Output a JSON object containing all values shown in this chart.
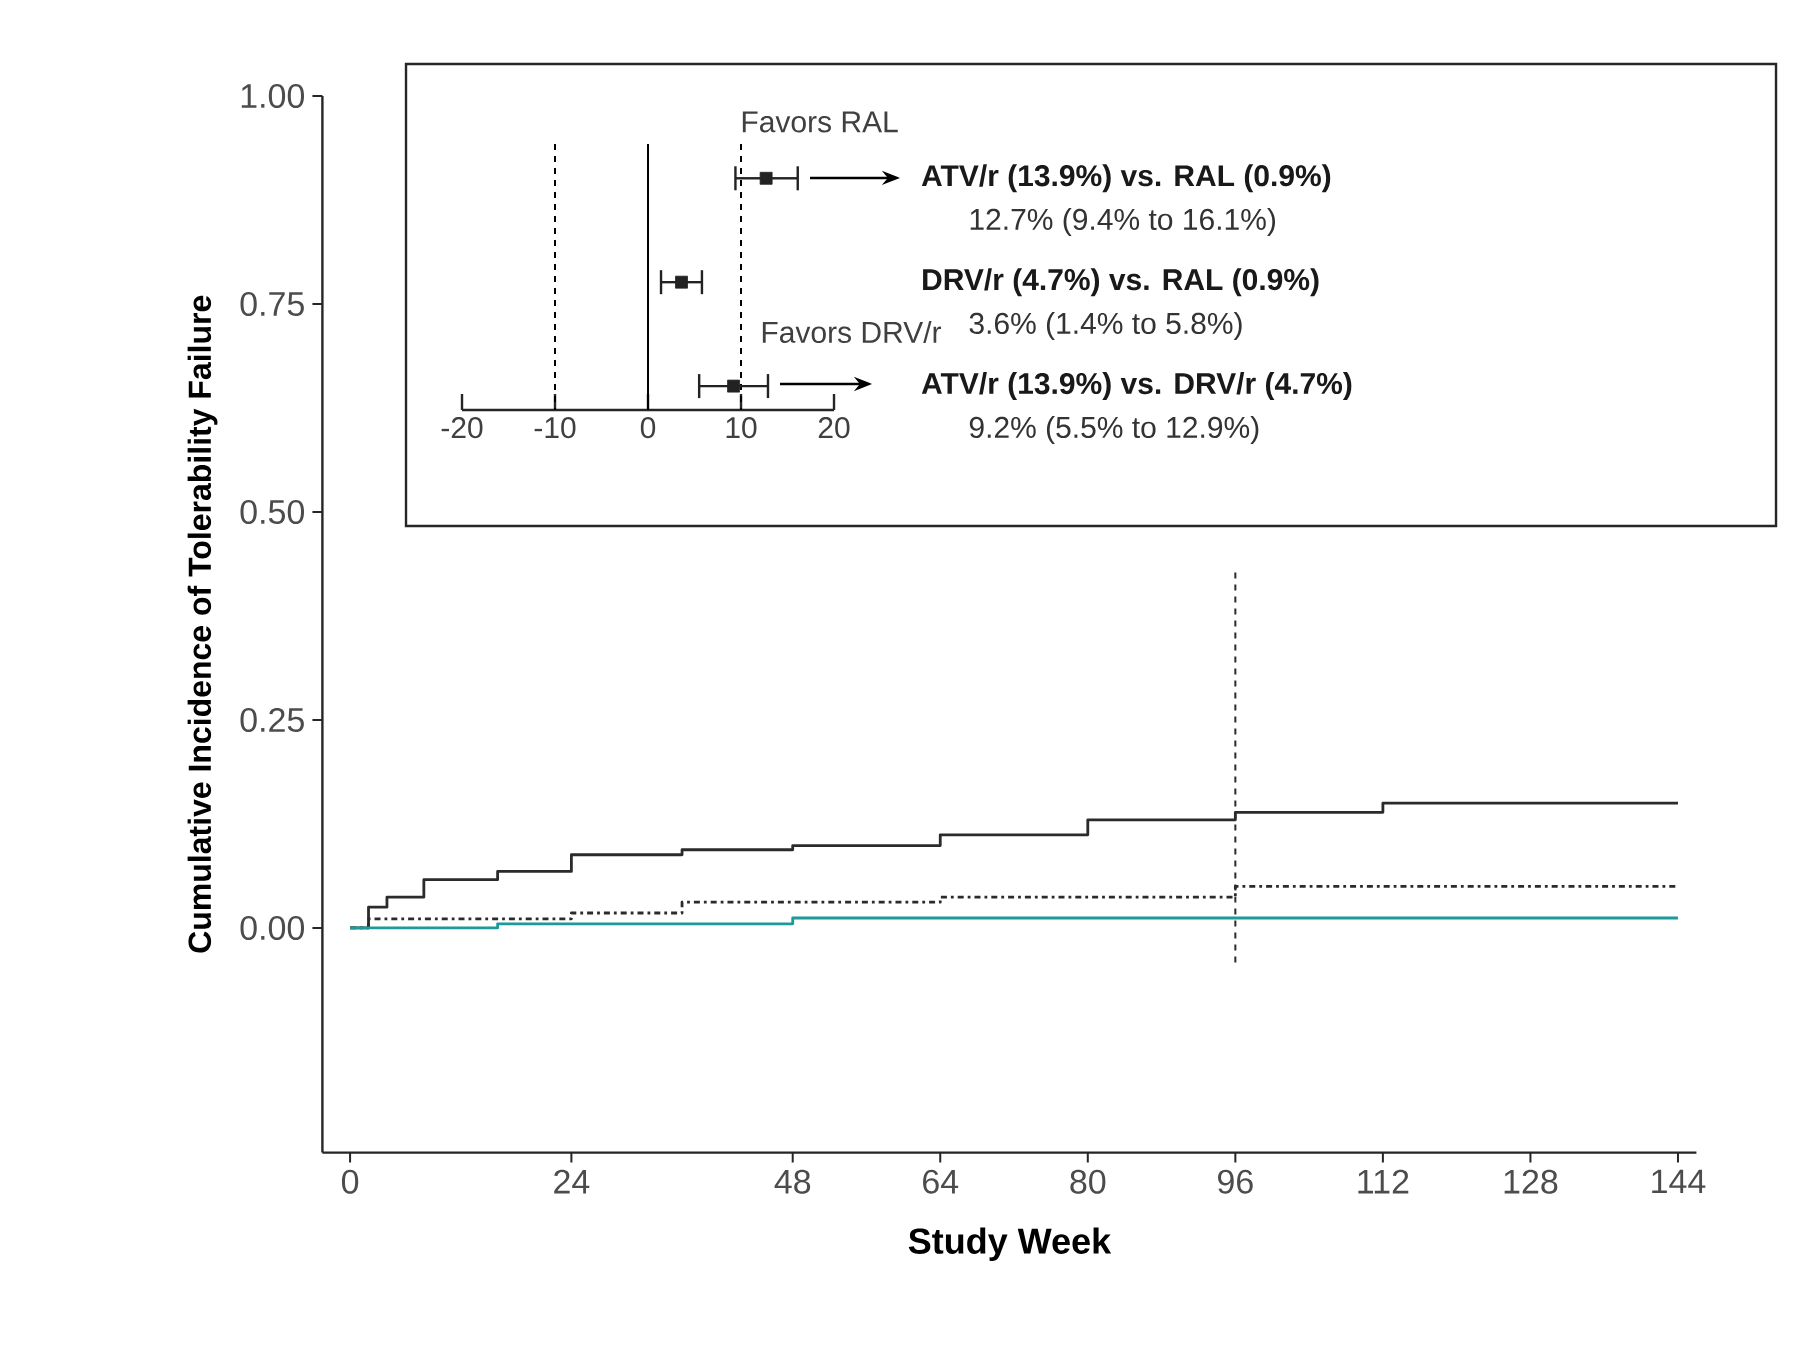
{
  "chart_data": [
    {
      "type": "step",
      "xlabel": "Study Week",
      "ylabel": "Cumulative Incidence of Tolerability Failure",
      "xlim": [
        -3,
        146
      ],
      "ylim": [
        -0.27,
        1.0
      ],
      "xticks": [
        0,
        24,
        48,
        64,
        80,
        96,
        112,
        128,
        144
      ],
      "yticks": [
        {
          "value": 0,
          "label": "0.00"
        },
        {
          "value": 0.25,
          "label": "0.25"
        },
        {
          "value": 0.5,
          "label": "0.50"
        },
        {
          "value": 0.75,
          "label": "0.75"
        },
        {
          "value": 1.0,
          "label": "1.00"
        }
      ],
      "series": [
        {
          "color": "#2b2b2b",
          "line_style": "solid",
          "x": [
            0,
            2,
            4,
            8,
            16,
            24,
            36,
            48,
            64,
            80,
            96,
            112,
            144
          ],
          "values": [
            0,
            0.025,
            0.037,
            0.058,
            0.068,
            0.088,
            0.094,
            0.099,
            0.112,
            0.13,
            0.139,
            0.15,
            0.15
          ]
        },
        {
          "color": "#2b2b2b",
          "line_style": "dotted",
          "x": [
            0,
            2,
            24,
            36,
            64,
            96,
            144
          ],
          "values": [
            0,
            0.011,
            0.018,
            0.031,
            0.037,
            0.05,
            0.05
          ]
        },
        {
          "color": "#1f9a9a",
          "line_style": "solid",
          "x": [
            0,
            16,
            48,
            144
          ],
          "values": [
            0,
            0.005,
            0.012,
            0.012
          ]
        }
      ],
      "ref_lines": [
        {
          "axis": "x",
          "value": 96,
          "line_style": "dashed",
          "color": "#2b2b2b"
        }
      ]
    },
    {
      "type": "scatter",
      "orientation": "horizontal",
      "marker": "square",
      "color": "#222222",
      "categories": [
        "ATV/r (13.9%) vs. RAL (0.9%)",
        "DRV/r (4.7%) vs. RAL (0.9%)",
        "ATV/r (13.9%) vs. DRV/r (4.7%)"
      ],
      "values": [
        12.7,
        3.6,
        9.2
      ],
      "errors": [
        [
          9.4,
          16.1
        ],
        [
          1.4,
          5.8
        ],
        [
          5.5,
          12.9
        ]
      ],
      "xlim": [
        -20,
        20
      ],
      "xticks": [
        -20,
        -10,
        0,
        10,
        20
      ],
      "ref_lines": [
        {
          "axis": "x",
          "value": 0,
          "line_style": "solid"
        },
        {
          "axis": "x",
          "value": -10,
          "line_style": "dashed"
        },
        {
          "axis": "x",
          "value": 10,
          "line_style": "dashed"
        }
      ],
      "annotations": [
        "12.7% (9.4% to 16.1%)",
        "3.6% (1.4% to 5.8%)",
        "9.2% (5.5% to 12.9%)",
        "Favors RAL",
        "Favors DRV/r"
      ]
    }
  ]
}
